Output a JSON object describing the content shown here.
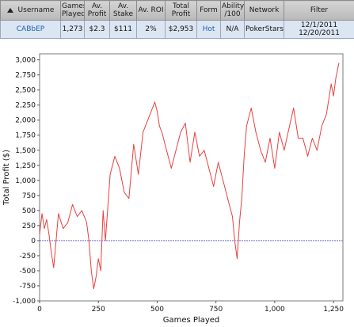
{
  "table": {
    "headers": {
      "username": "Username",
      "games_played": "Games Played",
      "av_profit": "Av. Profit",
      "av_stake": "Av. Stake",
      "av_roi": "Av. ROI",
      "total_profit": "Total Profit",
      "form": "Form",
      "ability": "Ability /100",
      "network": "Network",
      "filter": "Filter"
    },
    "row": {
      "username": "CABbEP",
      "games_played": "1,273",
      "av_profit": "$2.3",
      "av_stake": "$111",
      "av_roi": "2%",
      "total_profit": "$2,953",
      "form": "Hot",
      "ability": "N/A",
      "network": "PokerStars",
      "filter_from": "12/1/2011",
      "filter_to": "12/20/2011"
    },
    "sort_icon": "sort-up-arrow-icon"
  },
  "chart_data": {
    "type": "line",
    "xlabel": "Games Played",
    "ylabel": "Total Profit ($)",
    "xlim": [
      0,
      1290
    ],
    "ylim": [
      -1000,
      3100
    ],
    "x_ticks": [
      0,
      250,
      500,
      750,
      1000,
      1250
    ],
    "x_tick_labels": [
      "0",
      "250",
      "500",
      "750",
      "1,000",
      "1,250"
    ],
    "y_ticks": [
      -1000,
      -750,
      -500,
      -250,
      0,
      250,
      500,
      750,
      1000,
      1250,
      1500,
      1750,
      2000,
      2250,
      2500,
      2750,
      3000
    ],
    "y_tick_labels": [
      "-1,000",
      "-750",
      "-500",
      "-250",
      "0",
      "250",
      "500",
      "750",
      "1,000",
      "1,250",
      "1,500",
      "1,750",
      "2,000",
      "2,250",
      "2,500",
      "2,750",
      "3,000"
    ],
    "line_color": "#e8403f",
    "zero_line_color": "#6a6ad8",
    "series": [
      {
        "x": [
          0,
          10,
          20,
          30,
          40,
          50,
          60,
          70,
          80,
          100,
          120,
          140,
          160,
          180,
          200,
          210,
          220,
          230,
          240,
          250,
          260,
          270,
          280,
          300,
          320,
          340,
          360,
          380,
          400,
          420,
          440,
          460,
          480,
          490,
          500,
          510,
          520,
          540,
          560,
          580,
          600,
          620,
          640,
          660,
          680,
          700,
          720,
          740,
          760,
          780,
          800,
          820,
          830,
          840,
          850,
          860,
          870,
          880,
          900,
          920,
          940,
          960,
          980,
          1000,
          1020,
          1040,
          1060,
          1080,
          1100,
          1120,
          1140,
          1160,
          1180,
          1200,
          1220,
          1240,
          1250,
          1260,
          1273
        ],
        "y": [
          100,
          450,
          200,
          350,
          100,
          -200,
          -450,
          0,
          450,
          200,
          300,
          600,
          400,
          500,
          300,
          0,
          -500,
          -800,
          -600,
          -300,
          -500,
          500,
          0,
          1100,
          1400,
          1200,
          800,
          700,
          1600,
          1100,
          1800,
          2000,
          2200,
          2300,
          2150,
          1900,
          1800,
          1500,
          1200,
          1500,
          1800,
          1950,
          1300,
          1800,
          1400,
          1500,
          1200,
          900,
          1300,
          1000,
          700,
          400,
          0,
          -300,
          300,
          700,
          1400,
          1900,
          2200,
          1800,
          1500,
          1300,
          1700,
          1200,
          1800,
          1500,
          1850,
          2200,
          1700,
          1700,
          1400,
          1700,
          1500,
          1900,
          2100,
          2600,
          2400,
          2700,
          2950
        ]
      }
    ]
  }
}
